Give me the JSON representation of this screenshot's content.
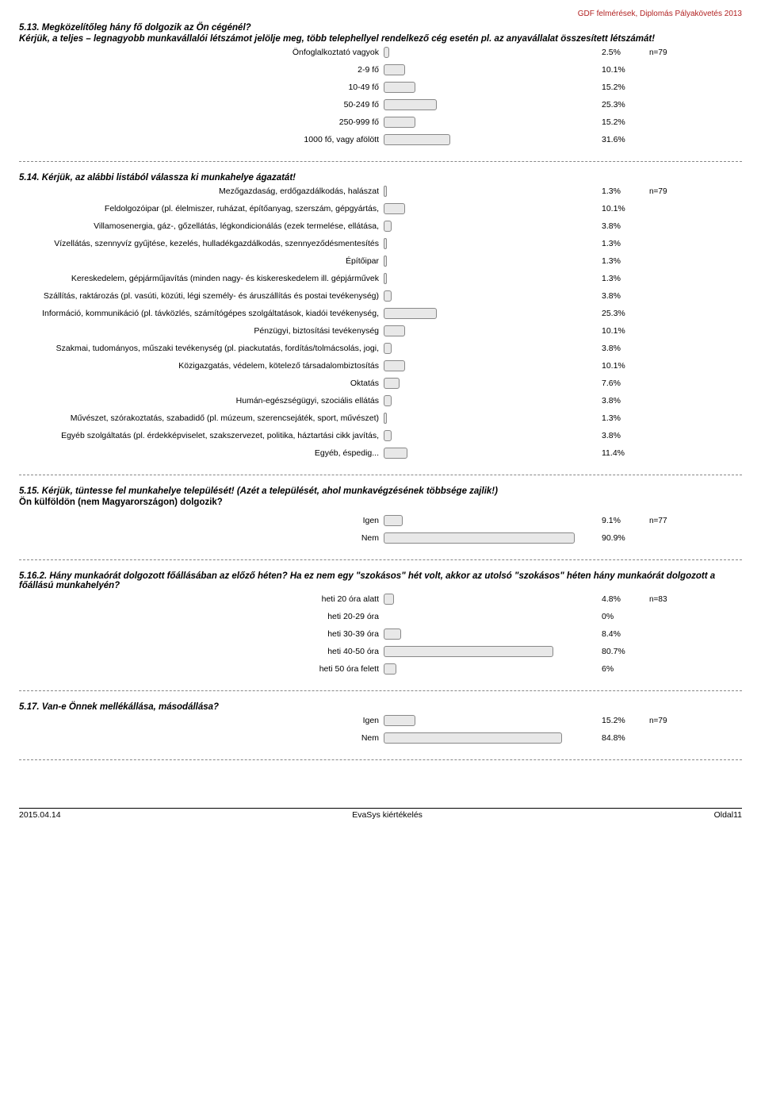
{
  "header": "GDF felmérések, Diplomás Pályakövetés 2013",
  "bar_style": {
    "fill": "#e8e8e8",
    "border": "#888888",
    "track_width": 265,
    "max_pct": 100
  },
  "q513": {
    "title": "5.13. Megközelítőleg hány fő dolgozik az Ön cégénél?",
    "sub": "Kérjük, a teljes – legnagyobb munkavállalói létszámot jelölje meg, több telephellyel rendelkező cég esetén pl. az anyavállalat összesített létszámát!",
    "n": "n=79",
    "rows": [
      {
        "label": "Önfoglalkoztató vagyok",
        "pct": "2.5%",
        "val": 2.5
      },
      {
        "label": "2-9 fő",
        "pct": "10.1%",
        "val": 10.1
      },
      {
        "label": "10-49 fő",
        "pct": "15.2%",
        "val": 15.2
      },
      {
        "label": "50-249 fő",
        "pct": "25.3%",
        "val": 25.3
      },
      {
        "label": "250-999 fő",
        "pct": "15.2%",
        "val": 15.2
      },
      {
        "label": "1000 fő, vagy afölött",
        "pct": "31.6%",
        "val": 31.6
      }
    ]
  },
  "q514": {
    "title": "5.14. Kérjük, az alábbi listából válassza ki munkahelye ágazatát!",
    "n": "n=79",
    "rows": [
      {
        "label": "Mezőgazdaság, erdőgazdálkodás, halászat",
        "pct": "1.3%",
        "val": 1.3
      },
      {
        "label": "Feldolgozóipar (pl. élelmiszer, ruházat, építőanyag, szerszám, gépgyártás,",
        "pct": "10.1%",
        "val": 10.1
      },
      {
        "label": "Villamosenergia, gáz-, gőzellátás, légkondicionálás (ezek termelése, ellátása,",
        "pct": "3.8%",
        "val": 3.8
      },
      {
        "label": "Vízellátás, szennyvíz gyűjtése, kezelés, hulladékgazdálkodás, szennyeződésmentesítés",
        "pct": "1.3%",
        "val": 1.3
      },
      {
        "label": "Építőipar",
        "pct": "1.3%",
        "val": 1.3
      },
      {
        "label": "Kereskedelem, gépjárműjavítás (minden nagy- és kiskereskedelem ill. gépjárművek",
        "pct": "1.3%",
        "val": 1.3
      },
      {
        "label": "Szállítás, raktározás (pl. vasúti, közúti, légi személy- és áruszállítás és postai tevékenység)",
        "pct": "3.8%",
        "val": 3.8
      },
      {
        "label": "Információ, kommunikáció (pl. távközlés, számítógépes szolgáltatások, kiadói tevékenység,",
        "pct": "25.3%",
        "val": 25.3
      },
      {
        "label": "Pénzügyi, biztosítási tevékenység",
        "pct": "10.1%",
        "val": 10.1
      },
      {
        "label": "Szakmai, tudományos, műszaki tevékenység (pl. piackutatás, fordítás/tolmácsolás, jogi,",
        "pct": "3.8%",
        "val": 3.8
      },
      {
        "label": "Közigazgatás, védelem, kötelező társadalombiztosítás",
        "pct": "10.1%",
        "val": 10.1
      },
      {
        "label": "Oktatás",
        "pct": "7.6%",
        "val": 7.6
      },
      {
        "label": "Humán-egészségügyi, szociális ellátás",
        "pct": "3.8%",
        "val": 3.8
      },
      {
        "label": "Művészet, szórakoztatás, szabadidő (pl. múzeum, szerencsejáték, sport, művészet)",
        "pct": "1.3%",
        "val": 1.3
      },
      {
        "label": "Egyéb szolgáltatás (pl. érdekképviselet, szakszervezet, politika, háztartási cikk javítás,",
        "pct": "3.8%",
        "val": 3.8
      },
      {
        "label": "Egyéb, éspedig...",
        "pct": "11.4%",
        "val": 11.4
      }
    ]
  },
  "q515": {
    "title": "5.15. Kérjük, tüntesse fel munkahelye települését! (Azét a települését, ahol munkavégzésének többsége zajlik!)",
    "sub": "Ön külföldön (nem Magyarországon) dolgozik?",
    "n": "n=77",
    "rows": [
      {
        "label": "Igen",
        "pct": "9.1%",
        "val": 9.1
      },
      {
        "label": "Nem",
        "pct": "90.9%",
        "val": 90.9
      }
    ]
  },
  "q5162": {
    "title": "5.16.2. Hány munkaórát dolgozott főállásában az előző héten? Ha ez nem egy \"szokásos\" hét volt, akkor az utolsó \"szokásos\" héten hány munkaórát dolgozott a főállású munkahelyén?",
    "n": "n=83",
    "rows": [
      {
        "label": "heti 20 óra alatt",
        "pct": "4.8%",
        "val": 4.8
      },
      {
        "label": "heti 20-29 óra",
        "pct": "0%",
        "val": 0
      },
      {
        "label": "heti 30-39 óra",
        "pct": "8.4%",
        "val": 8.4
      },
      {
        "label": "heti 40-50 óra",
        "pct": "80.7%",
        "val": 80.7
      },
      {
        "label": "heti 50 óra felett",
        "pct": "6%",
        "val": 6
      }
    ]
  },
  "q517": {
    "title": "5.17. Van-e Önnek mellékállása, másodállása?",
    "n": "n=79",
    "rows": [
      {
        "label": "Igen",
        "pct": "15.2%",
        "val": 15.2
      },
      {
        "label": "Nem",
        "pct": "84.8%",
        "val": 84.8
      }
    ]
  },
  "footer": {
    "left": "2015.04.14",
    "center": "EvaSys kiértékelés",
    "right": "Oldal11"
  }
}
